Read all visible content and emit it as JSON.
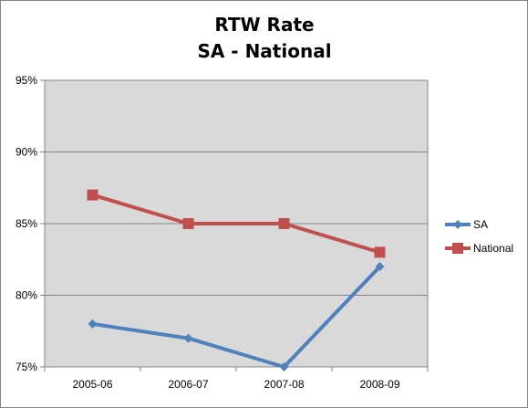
{
  "chart_data": {
    "type": "line",
    "title": "RTW Rate",
    "subtitle": "SA - National",
    "xlabel": "",
    "ylabel": "",
    "categories": [
      "2005-06",
      "2006-07",
      "2007-08",
      "2008-09"
    ],
    "ylim": [
      0.75,
      0.95
    ],
    "yticks": [
      0.75,
      0.8,
      0.85,
      0.9,
      0.95
    ],
    "ytick_labels": [
      "75%",
      "80%",
      "85%",
      "90%",
      "95%"
    ],
    "grid": true,
    "legend_position": "right",
    "plot_background": "#D9D9D9",
    "series": [
      {
        "name": "SA",
        "values": [
          0.78,
          0.77,
          0.75,
          0.82
        ],
        "color": "#4F81BD",
        "marker": "diamond"
      },
      {
        "name": "National",
        "values": [
          0.87,
          0.85,
          0.85,
          0.83
        ],
        "color": "#C0504D",
        "marker": "square"
      }
    ]
  }
}
